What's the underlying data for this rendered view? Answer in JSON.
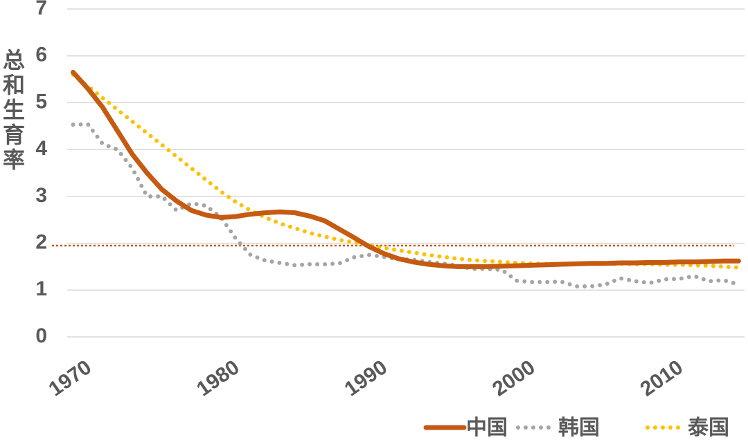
{
  "chart_data": {
    "type": "line",
    "y_label": "总和生育率",
    "x": [
      1970,
      1971,
      1972,
      1973,
      1974,
      1975,
      1976,
      1977,
      1978,
      1979,
      1980,
      1981,
      1982,
      1983,
      1984,
      1985,
      1986,
      1987,
      1988,
      1989,
      1990,
      1991,
      1992,
      1993,
      1994,
      1995,
      1996,
      1997,
      1998,
      1999,
      2000,
      2001,
      2002,
      2003,
      2004,
      2005,
      2006,
      2007,
      2008,
      2009,
      2010,
      2011,
      2012,
      2013,
      2014,
      2015
    ],
    "series": [
      {
        "name": "中国",
        "color": "#c55a11",
        "style": "solid",
        "values": [
          5.65,
          5.3,
          4.9,
          4.4,
          3.9,
          3.5,
          3.15,
          2.9,
          2.7,
          2.6,
          2.55,
          2.57,
          2.62,
          2.65,
          2.67,
          2.65,
          2.58,
          2.48,
          2.3,
          2.12,
          1.93,
          1.78,
          1.67,
          1.6,
          1.55,
          1.52,
          1.5,
          1.5,
          1.5,
          1.51,
          1.52,
          1.53,
          1.54,
          1.55,
          1.56,
          1.57,
          1.57,
          1.58,
          1.58,
          1.59,
          1.59,
          1.6,
          1.6,
          1.61,
          1.62,
          1.62
        ]
      },
      {
        "name": "韩国",
        "color": "#a5a5a5",
        "style": "dotted",
        "values": [
          4.53,
          4.54,
          4.12,
          4.0,
          3.6,
          3.0,
          3.0,
          2.7,
          2.85,
          2.8,
          2.55,
          2.1,
          1.75,
          1.63,
          1.58,
          1.53,
          1.55,
          1.55,
          1.57,
          1.7,
          1.75,
          1.71,
          1.66,
          1.65,
          1.6,
          1.57,
          1.52,
          1.45,
          1.45,
          1.43,
          1.2,
          1.17,
          1.17,
          1.18,
          1.08,
          1.08,
          1.12,
          1.25,
          1.19,
          1.15,
          1.23,
          1.24,
          1.3,
          1.19,
          1.21,
          1.12
        ]
      },
      {
        "name": "泰国",
        "color": "#ffc000",
        "style": "dotted",
        "values": [
          5.6,
          5.35,
          5.1,
          4.85,
          4.6,
          4.35,
          4.1,
          3.85,
          3.6,
          3.35,
          3.1,
          2.88,
          2.7,
          2.55,
          2.42,
          2.32,
          2.22,
          2.14,
          2.07,
          2.02,
          1.96,
          1.9,
          1.85,
          1.8,
          1.75,
          1.71,
          1.67,
          1.64,
          1.62,
          1.6,
          1.58,
          1.57,
          1.56,
          1.56,
          1.56,
          1.56,
          1.56,
          1.56,
          1.55,
          1.55,
          1.54,
          1.54,
          1.53,
          1.52,
          1.5,
          1.48
        ]
      }
    ],
    "reference_line": {
      "value": 1.95,
      "color": "#c55a11"
    },
    "xlim": [
      1969.6,
      2015.4
    ],
    "xticks": [
      1970,
      1980,
      1990,
      2000,
      2010
    ],
    "ylim": [
      0,
      7
    ],
    "yticks": [
      0,
      1,
      2,
      3,
      4,
      5,
      6,
      7
    ],
    "grid": true,
    "legend": "bottom-right"
  }
}
